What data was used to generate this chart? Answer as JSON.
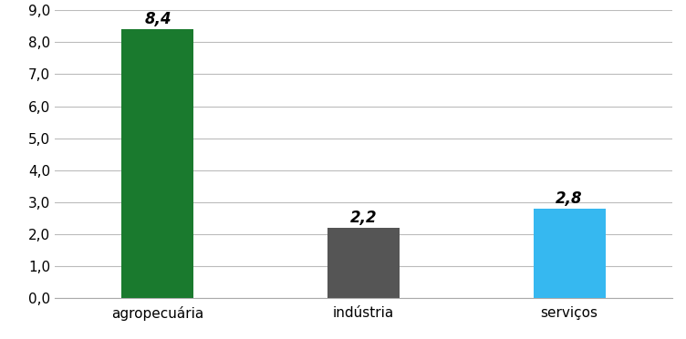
{
  "categories": [
    "agropecuária",
    "indústria",
    "serviços"
  ],
  "values": [
    8.4,
    2.2,
    2.8
  ],
  "bar_colors": [
    "#1a7a2e",
    "#555555",
    "#36b8f0"
  ],
  "bar_labels": [
    "8,4",
    "2,2",
    "2,8"
  ],
  "ylim": [
    0,
    9.0
  ],
  "yticks": [
    0.0,
    1.0,
    2.0,
    3.0,
    4.0,
    5.0,
    6.0,
    7.0,
    8.0,
    9.0
  ],
  "ytick_labels": [
    "0,0",
    "1,0",
    "2,0",
    "3,0",
    "4,0",
    "5,0",
    "6,0",
    "7,0",
    "8,0",
    "9,0"
  ],
  "background_color": "#ffffff",
  "grid_color": "#bbbbbb",
  "tick_fontsize": 11,
  "annotation_fontsize": 12,
  "bar_width": 0.35,
  "x_positions": [
    0,
    1,
    2
  ]
}
